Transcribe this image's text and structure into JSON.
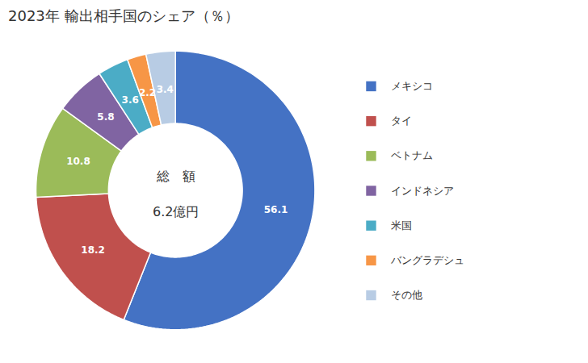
{
  "chart_data": {
    "type": "pie",
    "title": "2023年 輸出相手国のシェア（％）",
    "categories": [
      "メキシコ",
      "タイ",
      "ベトナム",
      "インドネシア",
      "米国",
      "バングラデシュ",
      "その他"
    ],
    "values": [
      56.1,
      18.2,
      10.8,
      5.8,
      3.6,
      2.2,
      3.4
    ],
    "colors": [
      "#4472C4",
      "#C0504D",
      "#9BBB59",
      "#8064A2",
      "#4BACC6",
      "#F79646",
      "#B8CCE4"
    ],
    "data_labels": true,
    "legend": "right",
    "annotations": [
      "総　額",
      "6.2億円"
    ]
  }
}
